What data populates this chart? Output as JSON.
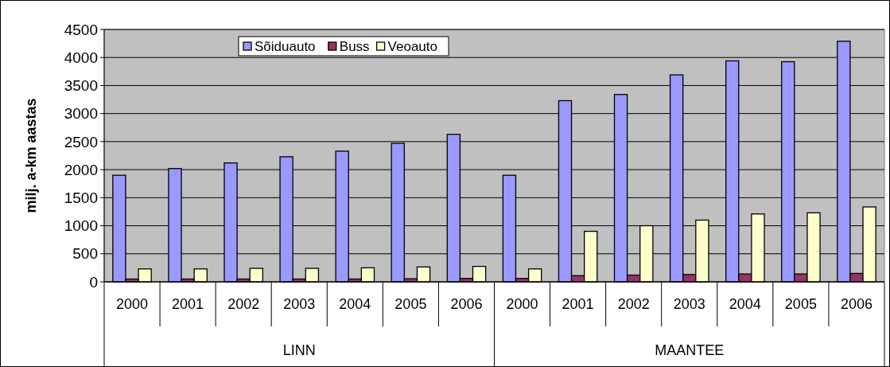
{
  "chart_data": {
    "type": "bar",
    "ylabel": "milj. a-km aastas",
    "categories": [
      "2000",
      "2001",
      "2002",
      "2003",
      "2004",
      "2005",
      "2006",
      "2000",
      "2001",
      "2002",
      "2003",
      "2004",
      "2005",
      "2006"
    ],
    "annotations": [
      "LINN",
      "MAANTEE"
    ],
    "series": [
      {
        "name": "Sõiduauto",
        "color": "#9999ff",
        "values": [
          1900,
          2020,
          2120,
          2230,
          2330,
          2470,
          2630,
          1900,
          3230,
          3340,
          3690,
          3940,
          3925,
          4290
        ]
      },
      {
        "name": "Buss",
        "color": "#993366",
        "values": [
          50,
          50,
          50,
          50,
          50,
          55,
          60,
          60,
          110,
          120,
          130,
          140,
          140,
          150
        ]
      },
      {
        "name": "Veoauto",
        "color": "#ffffcc",
        "values": [
          230,
          230,
          240,
          240,
          250,
          265,
          275,
          230,
          900,
          1000,
          1100,
          1210,
          1230,
          1335
        ]
      }
    ],
    "ylim": [
      0,
      4500
    ],
    "yticks": [
      0,
      500,
      1000,
      1500,
      2000,
      2500,
      3000,
      3500,
      4000,
      4500
    ],
    "grid": "y",
    "legend": "top"
  }
}
